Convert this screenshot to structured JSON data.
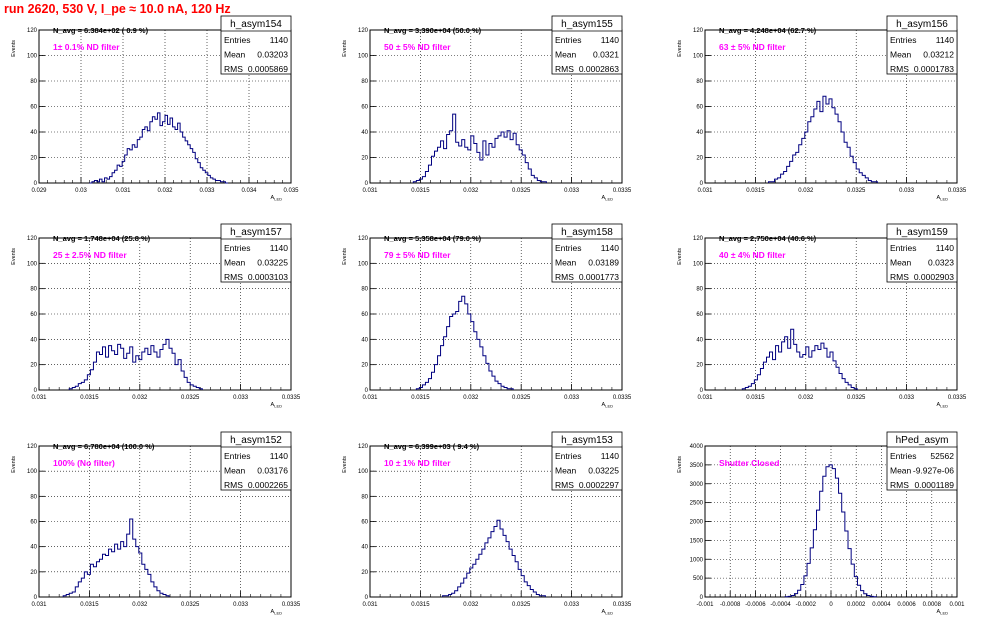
{
  "page": {
    "run_title": "run 2620,   530 V, I_pe ≈ 10.0 nA, 120 Hz"
  },
  "chart_data": [
    {
      "type": "histogram",
      "name": "h_asym154",
      "ylabel": "Events",
      "xlabel": "A",
      "xlabel_sub": "LED",
      "xlim": [
        0.029,
        0.035
      ],
      "ylim": [
        0,
        120
      ],
      "xticks": [
        "0.029",
        "0.03",
        "0.031",
        "0.032",
        "0.033",
        "0.034",
        "0.035"
      ],
      "yticks": [
        0,
        20,
        40,
        60,
        80,
        100,
        120
      ],
      "stats": {
        "Entries": "1140",
        "Mean": "0.03203",
        "RMS": "0.0005869"
      },
      "navg_label": "N_avg = 6.384e+02 ( 0.9 %)",
      "filter_label": "1± 0.1% ND filter",
      "counts": [
        0,
        1,
        2,
        1,
        3,
        1,
        4,
        3,
        5,
        8,
        10,
        14,
        13,
        17,
        22,
        27,
        26,
        30,
        28,
        34,
        36,
        42,
        44,
        41,
        48,
        52,
        50,
        55,
        45,
        48,
        53,
        46,
        51,
        44,
        42,
        47,
        40,
        36,
        33,
        30,
        27,
        24,
        19,
        16,
        12,
        10,
        8,
        6,
        4,
        3,
        2,
        2,
        1,
        1,
        0
      ],
      "x_start": 0.0302,
      "bin_width": 6e-05
    },
    {
      "type": "histogram",
      "name": "h_asym155",
      "ylabel": "Events",
      "xlabel": "A",
      "xlabel_sub": "LED",
      "xlim": [
        0.031,
        0.0335
      ],
      "ylim": [
        0,
        120
      ],
      "xticks": [
        "0.031",
        "0.0315",
        "0.032",
        "0.0325",
        "0.033",
        "0.0335"
      ],
      "yticks": [
        0,
        20,
        40,
        60,
        80,
        100,
        120
      ],
      "stats": {
        "Entries": "1140",
        "Mean": "0.0321",
        "RMS": "0.0002863"
      },
      "navg_label": "N_avg = 3.390e+04 (50.0 %)",
      "filter_label": "50 ± 5% ND filter",
      "counts": [
        1,
        2,
        3,
        5,
        9,
        14,
        21,
        25,
        28,
        33,
        27,
        38,
        41,
        54,
        32,
        29,
        34,
        28,
        26,
        37,
        31,
        24,
        18,
        33,
        22,
        31,
        28,
        35,
        37,
        40,
        36,
        41,
        34,
        39,
        30,
        26,
        22,
        16,
        11,
        6,
        4,
        2,
        1,
        1
      ],
      "x_start": 0.03143,
      "bin_width": 3e-05
    },
    {
      "type": "histogram",
      "name": "h_asym156",
      "ylabel": "Events",
      "xlabel": "A",
      "xlabel_sub": "LED",
      "xlim": [
        0.031,
        0.0335
      ],
      "ylim": [
        0,
        120
      ],
      "xticks": [
        "0.031",
        "0.0315",
        "0.032",
        "0.0325",
        "0.033",
        "0.0335"
      ],
      "yticks": [
        0,
        20,
        40,
        60,
        80,
        100,
        120
      ],
      "stats": {
        "Entries": "1140",
        "Mean": "0.03212",
        "RMS": "0.0001783"
      },
      "navg_label": "N_avg = 4.248e+04 (62.7 %)",
      "filter_label": "63 ± 5% ND filter",
      "counts": [
        1,
        1,
        3,
        4,
        7,
        9,
        13,
        17,
        22,
        24,
        30,
        35,
        40,
        48,
        52,
        58,
        64,
        56,
        68,
        62,
        66,
        59,
        54,
        48,
        40,
        32,
        28,
        21,
        16,
        11,
        8,
        6,
        4,
        2,
        1,
        1
      ],
      "x_start": 0.03163,
      "bin_width": 3e-05
    },
    {
      "type": "histogram",
      "name": "h_asym157",
      "ylabel": "Events",
      "xlabel": "A",
      "xlabel_sub": "LED",
      "xlim": [
        0.031,
        0.0335
      ],
      "ylim": [
        0,
        120
      ],
      "xticks": [
        "0.031",
        "0.0315",
        "0.032",
        "0.0325",
        "0.033",
        "0.0335"
      ],
      "yticks": [
        0,
        20,
        40,
        60,
        80,
        100,
        120
      ],
      "stats": {
        "Entries": "1140",
        "Mean": "0.03225",
        "RMS": "0.0003103"
      },
      "navg_label": "N_avg = 1.748e+04 (25.8 %)",
      "filter_label": "25 ± 2.5% ND filter",
      "counts": [
        1,
        2,
        3,
        5,
        6,
        8,
        12,
        16,
        22,
        30,
        28,
        34,
        26,
        35,
        31,
        28,
        36,
        33,
        25,
        29,
        34,
        22,
        27,
        24,
        30,
        33,
        28,
        35,
        30,
        26,
        32,
        36,
        40,
        33,
        29,
        20,
        24,
        15,
        10,
        6,
        4,
        3,
        2,
        1
      ],
      "x_start": 0.0313,
      "bin_width": 3e-05
    },
    {
      "type": "histogram",
      "name": "h_asym158",
      "ylabel": "Events",
      "xlabel": "A",
      "xlabel_sub": "LED",
      "xlim": [
        0.031,
        0.0335
      ],
      "ylim": [
        0,
        120
      ],
      "xticks": [
        "0.031",
        "0.0315",
        "0.032",
        "0.0325",
        "0.033",
        "0.0335"
      ],
      "yticks": [
        0,
        20,
        40,
        60,
        80,
        100,
        120
      ],
      "stats": {
        "Entries": "1140",
        "Mean": "0.03189",
        "RMS": "0.0001773"
      },
      "navg_label": "N_avg = 5.358e+04 (79.0 %)",
      "filter_label": "79 ± 5% ND filter",
      "counts": [
        1,
        2,
        4,
        6,
        9,
        14,
        20,
        27,
        35,
        42,
        50,
        58,
        60,
        62,
        70,
        74,
        68,
        60,
        54,
        46,
        40,
        34,
        27,
        21,
        15,
        11,
        7,
        5,
        3,
        2,
        1,
        1
      ],
      "x_start": 0.03146,
      "bin_width": 3e-05
    },
    {
      "type": "histogram",
      "name": "h_asym159",
      "ylabel": "Events",
      "xlabel": "A",
      "xlabel_sub": "LED",
      "xlim": [
        0.031,
        0.0335
      ],
      "ylim": [
        0,
        120
      ],
      "xticks": [
        "0.031",
        "0.0315",
        "0.032",
        "0.0325",
        "0.033",
        "0.0335"
      ],
      "yticks": [
        0,
        20,
        40,
        60,
        80,
        100,
        120
      ],
      "stats": {
        "Entries": "1140",
        "Mean": "0.0323",
        "RMS": "0.0002903"
      },
      "navg_label": "N_avg = 2.750e+04 (40.6 %)",
      "filter_label": "40 ± 4% ND filter",
      "counts": [
        1,
        2,
        3,
        5,
        8,
        12,
        17,
        22,
        26,
        30,
        24,
        35,
        30,
        38,
        42,
        33,
        48,
        36,
        30,
        26,
        28,
        34,
        26,
        31,
        35,
        32,
        37,
        33,
        26,
        30,
        23,
        18,
        13,
        9,
        6,
        4,
        2,
        1
      ],
      "x_start": 0.03137,
      "bin_width": 3e-05
    },
    {
      "type": "histogram",
      "name": "h_asym152",
      "ylabel": "Events",
      "xlabel": "A",
      "xlabel_sub": "LED",
      "xlim": [
        0.031,
        0.0335
      ],
      "ylim": [
        0,
        120
      ],
      "xticks": [
        "0.031",
        "0.0315",
        "0.032",
        "0.0325",
        "0.033",
        "0.0335"
      ],
      "yticks": [
        0,
        20,
        40,
        60,
        80,
        100,
        120
      ],
      "stats": {
        "Entries": "1140",
        "Mean": "0.03176",
        "RMS": "0.0002265"
      },
      "navg_label": "N_avg = 6.780e+04 (100.0 %)",
      "filter_label": "100% (No filter)",
      "counts": [
        1,
        2,
        3,
        4,
        8,
        12,
        15,
        20,
        18,
        26,
        24,
        28,
        30,
        34,
        33,
        38,
        36,
        42,
        38,
        44,
        40,
        50,
        62,
        46,
        40,
        35,
        26,
        22,
        18,
        12,
        8,
        5,
        3,
        2,
        1
      ],
      "x_start": 0.03124,
      "bin_width": 3e-05
    },
    {
      "type": "histogram",
      "name": "h_asym153",
      "ylabel": "Events",
      "xlabel": "A",
      "xlabel_sub": "LED",
      "xlim": [
        0.031,
        0.0335
      ],
      "ylim": [
        0,
        120
      ],
      "xticks": [
        "0.031",
        "0.0315",
        "0.032",
        "0.0325",
        "0.033",
        "0.0335"
      ],
      "yticks": [
        0,
        20,
        40,
        60,
        80,
        100,
        120
      ],
      "stats": {
        "Entries": "1140",
        "Mean": "0.03225",
        "RMS": "0.0002297"
      },
      "navg_label": "N_avg = 6.399e+03 ( 9.4 %)",
      "filter_label": "10 ± 1% ND filter",
      "counts": [
        1,
        1,
        2,
        3,
        5,
        8,
        11,
        15,
        19,
        23,
        26,
        30,
        34,
        38,
        43,
        47,
        52,
        56,
        61,
        54,
        49,
        44,
        38,
        33,
        28,
        22,
        17,
        12,
        9,
        6,
        4,
        2,
        1,
        1
      ],
      "x_start": 0.03172,
      "bin_width": 3e-05
    },
    {
      "type": "histogram",
      "name": "hPed_asym",
      "ylabel": "Events",
      "xlabel": "A",
      "xlabel_sub": "LED",
      "xlim": [
        -0.001,
        0.001
      ],
      "ylim": [
        0,
        4000
      ],
      "xticks": [
        "-0.001",
        "-0.0008",
        "-0.0006",
        "-0.0004",
        "-0.0002",
        "0",
        "0.0002",
        "0.0004",
        "0.0006",
        "0.0008",
        "0.001"
      ],
      "yticks": [
        0,
        500,
        1000,
        1500,
        2000,
        2500,
        3000,
        3500,
        4000
      ],
      "stats": {
        "Entries": "52562",
        "Mean": "-9.927e-06",
        "RMS": "0.0001189"
      },
      "navg_label": "",
      "filter_label": "Shutter Closed",
      "counts": [
        5,
        15,
        40,
        90,
        180,
        330,
        560,
        890,
        1300,
        1780,
        2300,
        2800,
        3200,
        3450,
        3500,
        3400,
        3150,
        2750,
        2250,
        1750,
        1280,
        870,
        540,
        310,
        170,
        85,
        40,
        18,
        6
      ],
      "x_start": -0.000365,
      "bin_width": 2.5e-05
    }
  ]
}
